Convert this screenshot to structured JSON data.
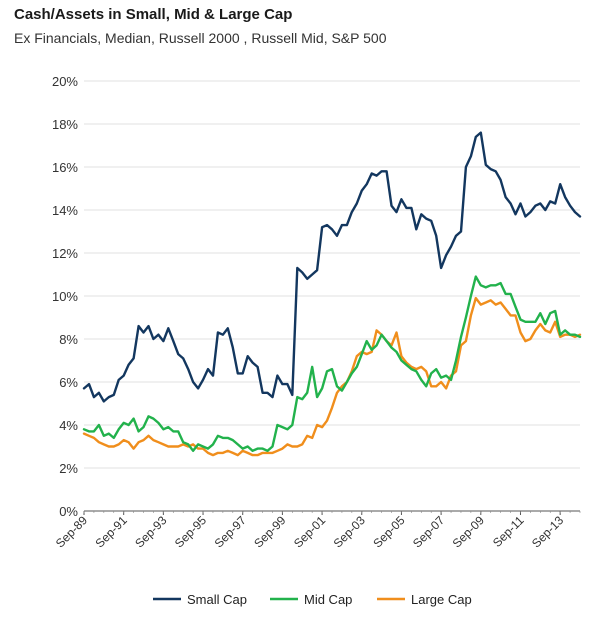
{
  "chart_data": {
    "type": "line",
    "title": "Cash/Assets in Small, Mid & Large Cap",
    "subtitle": "Ex Financials, Median, Russell 2000 , Russell Mid, S&P 500",
    "xlabel": "",
    "ylabel": "",
    "ylim": [
      0,
      20
    ],
    "y_ticks": [
      "0%",
      "2%",
      "4%",
      "6%",
      "8%",
      "10%",
      "12%",
      "14%",
      "16%",
      "18%",
      "20%"
    ],
    "x_tick_labels": [
      "Sep-89",
      "Sep-91",
      "Sep-93",
      "Sep-95",
      "Sep-97",
      "Sep-99",
      "Sep-01",
      "Sep-03",
      "Sep-05",
      "Sep-07",
      "Sep-09",
      "Sep-11",
      "Sep-13"
    ],
    "xlim": [
      1989.67,
      2014.67
    ],
    "grid": "horizontal",
    "legend_position": "bottom",
    "series": [
      {
        "name": "Small Cap",
        "color": "#13375f",
        "x": [
          1989.67,
          1989.92,
          1990.17,
          1990.42,
          1990.67,
          1990.92,
          1991.17,
          1991.42,
          1991.67,
          1991.92,
          1992.17,
          1992.42,
          1992.67,
          1992.92,
          1993.17,
          1993.42,
          1993.67,
          1993.92,
          1994.17,
          1994.42,
          1994.67,
          1994.92,
          1995.17,
          1995.42,
          1995.67,
          1995.92,
          1996.17,
          1996.42,
          1996.67,
          1996.92,
          1997.17,
          1997.42,
          1997.67,
          1997.92,
          1998.17,
          1998.42,
          1998.67,
          1998.92,
          1999.17,
          1999.42,
          1999.67,
          1999.92,
          2000.17,
          2000.42,
          2000.67,
          2000.92,
          2001.17,
          2001.42,
          2001.67,
          2001.92,
          2002.17,
          2002.42,
          2002.67,
          2002.92,
          2003.17,
          2003.42,
          2003.67,
          2003.92,
          2004.17,
          2004.42,
          2004.67,
          2004.92,
          2005.17,
          2005.42,
          2005.67,
          2005.92,
          2006.17,
          2006.42,
          2006.67,
          2006.92,
          2007.17,
          2007.42,
          2007.67,
          2007.92,
          2008.17,
          2008.42,
          2008.67,
          2008.92,
          2009.17,
          2009.42,
          2009.67,
          2009.92,
          2010.17,
          2010.42,
          2010.67,
          2010.92,
          2011.17,
          2011.42,
          2011.67,
          2011.92,
          2012.17,
          2012.42,
          2012.67,
          2012.92,
          2013.17,
          2013.42,
          2013.67,
          2013.92,
          2014.17,
          2014.42,
          2014.67
        ],
        "values": [
          5.7,
          5.9,
          5.3,
          5.5,
          5.1,
          5.3,
          5.4,
          6.1,
          6.3,
          6.8,
          7.1,
          8.6,
          8.3,
          8.6,
          8.0,
          8.2,
          7.9,
          8.5,
          7.9,
          7.3,
          7.1,
          6.6,
          6.0,
          5.7,
          6.1,
          6.6,
          6.3,
          8.3,
          8.2,
          8.5,
          7.6,
          6.4,
          6.4,
          7.2,
          6.9,
          6.7,
          5.5,
          5.5,
          5.3,
          6.3,
          5.9,
          5.9,
          5.4,
          11.3,
          11.1,
          10.8,
          11.0,
          11.2,
          13.2,
          13.3,
          13.1,
          12.8,
          13.3,
          13.3,
          13.9,
          14.3,
          14.9,
          15.2,
          15.7,
          15.6,
          15.8,
          15.8,
          14.2,
          13.9,
          14.5,
          14.1,
          14.1,
          13.1,
          13.8,
          13.6,
          13.5,
          12.8,
          11.3,
          11.9,
          12.3,
          12.8,
          13.0,
          16.0,
          16.5,
          17.4,
          17.6,
          16.1,
          15.9,
          15.8,
          15.4,
          14.6,
          14.3,
          13.8,
          14.3,
          13.7,
          13.9,
          14.2,
          14.3,
          14.0,
          14.4,
          14.3,
          15.2,
          14.6,
          14.2,
          13.9,
          13.7
        ]
      },
      {
        "name": "Mid Cap",
        "color": "#22b24c",
        "x": [
          1989.67,
          1989.92,
          1990.17,
          1990.42,
          1990.67,
          1990.92,
          1991.17,
          1991.42,
          1991.67,
          1991.92,
          1992.17,
          1992.42,
          1992.67,
          1992.92,
          1993.17,
          1993.42,
          1993.67,
          1993.92,
          1994.17,
          1994.42,
          1994.67,
          1994.92,
          1995.17,
          1995.42,
          1995.67,
          1995.92,
          1996.17,
          1996.42,
          1996.67,
          1996.92,
          1997.17,
          1997.42,
          1997.67,
          1997.92,
          1998.17,
          1998.42,
          1998.67,
          1998.92,
          1999.17,
          1999.42,
          1999.67,
          1999.92,
          2000.17,
          2000.42,
          2000.67,
          2000.92,
          2001.17,
          2001.42,
          2001.67,
          2001.92,
          2002.17,
          2002.42,
          2002.67,
          2002.92,
          2003.17,
          2003.42,
          2003.67,
          2003.92,
          2004.17,
          2004.42,
          2004.67,
          2004.92,
          2005.17,
          2005.42,
          2005.67,
          2005.92,
          2006.17,
          2006.42,
          2006.67,
          2006.92,
          2007.17,
          2007.42,
          2007.67,
          2007.92,
          2008.17,
          2008.42,
          2008.67,
          2008.92,
          2009.17,
          2009.42,
          2009.67,
          2009.92,
          2010.17,
          2010.42,
          2010.67,
          2010.92,
          2011.17,
          2011.42,
          2011.67,
          2011.92,
          2012.17,
          2012.42,
          2012.67,
          2012.92,
          2013.17,
          2013.42,
          2013.67,
          2013.92,
          2014.17,
          2014.42,
          2014.67
        ],
        "values": [
          3.8,
          3.7,
          3.7,
          4.0,
          3.5,
          3.6,
          3.4,
          3.8,
          4.1,
          4.0,
          4.3,
          3.7,
          3.9,
          4.4,
          4.3,
          4.1,
          3.8,
          3.9,
          3.7,
          3.7,
          3.2,
          3.1,
          2.8,
          3.1,
          3.0,
          2.9,
          3.1,
          3.5,
          3.4,
          3.4,
          3.3,
          3.1,
          2.9,
          3.0,
          2.8,
          2.9,
          2.9,
          2.8,
          3.0,
          4.0,
          3.9,
          3.8,
          4.0,
          5.3,
          5.2,
          5.5,
          6.7,
          5.3,
          5.7,
          6.5,
          6.6,
          5.8,
          5.6,
          6.0,
          6.4,
          6.7,
          7.3,
          7.9,
          7.5,
          7.7,
          8.2,
          7.9,
          7.6,
          7.4,
          7.0,
          6.8,
          6.6,
          6.5,
          6.1,
          5.8,
          6.4,
          6.6,
          6.2,
          6.3,
          6.1,
          7.0,
          8.1,
          9.0,
          10.0,
          10.9,
          10.5,
          10.4,
          10.5,
          10.5,
          10.6,
          10.1,
          10.1,
          9.5,
          8.9,
          8.8,
          8.8,
          8.8,
          9.2,
          8.7,
          9.2,
          9.3,
          8.2,
          8.4,
          8.2,
          8.2,
          8.1
        ]
      },
      {
        "name": "Large Cap",
        "color": "#f08e1c",
        "x": [
          1989.67,
          1989.92,
          1990.17,
          1990.42,
          1990.67,
          1990.92,
          1991.17,
          1991.42,
          1991.67,
          1991.92,
          1992.17,
          1992.42,
          1992.67,
          1992.92,
          1993.17,
          1993.42,
          1993.67,
          1993.92,
          1994.17,
          1994.42,
          1994.67,
          1994.92,
          1995.17,
          1995.42,
          1995.67,
          1995.92,
          1996.17,
          1996.42,
          1996.67,
          1996.92,
          1997.17,
          1997.42,
          1997.67,
          1997.92,
          1998.17,
          1998.42,
          1998.67,
          1998.92,
          1999.17,
          1999.42,
          1999.67,
          1999.92,
          2000.17,
          2000.42,
          2000.67,
          2000.92,
          2001.17,
          2001.42,
          2001.67,
          2001.92,
          2002.17,
          2002.42,
          2002.67,
          2002.92,
          2003.17,
          2003.42,
          2003.67,
          2003.92,
          2004.17,
          2004.42,
          2004.67,
          2004.92,
          2005.17,
          2005.42,
          2005.67,
          2005.92,
          2006.17,
          2006.42,
          2006.67,
          2006.92,
          2007.17,
          2007.42,
          2007.67,
          2007.92,
          2008.17,
          2008.42,
          2008.67,
          2008.92,
          2009.17,
          2009.42,
          2009.67,
          2009.92,
          2010.17,
          2010.42,
          2010.67,
          2010.92,
          2011.17,
          2011.42,
          2011.67,
          2011.92,
          2012.17,
          2012.42,
          2012.67,
          2012.92,
          2013.17,
          2013.42,
          2013.67,
          2013.92,
          2014.17,
          2014.42,
          2014.67
        ],
        "values": [
          3.6,
          3.5,
          3.4,
          3.2,
          3.1,
          3.0,
          3.0,
          3.1,
          3.3,
          3.2,
          2.9,
          3.2,
          3.3,
          3.5,
          3.3,
          3.2,
          3.1,
          3.0,
          3.0,
          3.0,
          3.1,
          3.0,
          3.1,
          2.9,
          2.9,
          2.7,
          2.6,
          2.7,
          2.7,
          2.8,
          2.7,
          2.6,
          2.8,
          2.7,
          2.6,
          2.6,
          2.7,
          2.7,
          2.7,
          2.8,
          2.9,
          3.1,
          3.0,
          3.0,
          3.1,
          3.5,
          3.4,
          4.0,
          3.9,
          4.2,
          4.8,
          5.5,
          5.8,
          6.0,
          6.5,
          7.2,
          7.4,
          7.3,
          7.4,
          8.4,
          8.2,
          7.9,
          7.7,
          8.3,
          7.2,
          6.9,
          6.7,
          6.6,
          6.7,
          6.5,
          5.8,
          5.8,
          6.0,
          5.7,
          6.3,
          6.5,
          7.7,
          7.9,
          9.1,
          9.9,
          9.6,
          9.7,
          9.8,
          9.6,
          9.7,
          9.4,
          9.1,
          9.1,
          8.3,
          7.9,
          8.0,
          8.4,
          8.7,
          8.4,
          8.3,
          8.8,
          8.1,
          8.2,
          8.2,
          8.1,
          8.2
        ]
      }
    ]
  }
}
